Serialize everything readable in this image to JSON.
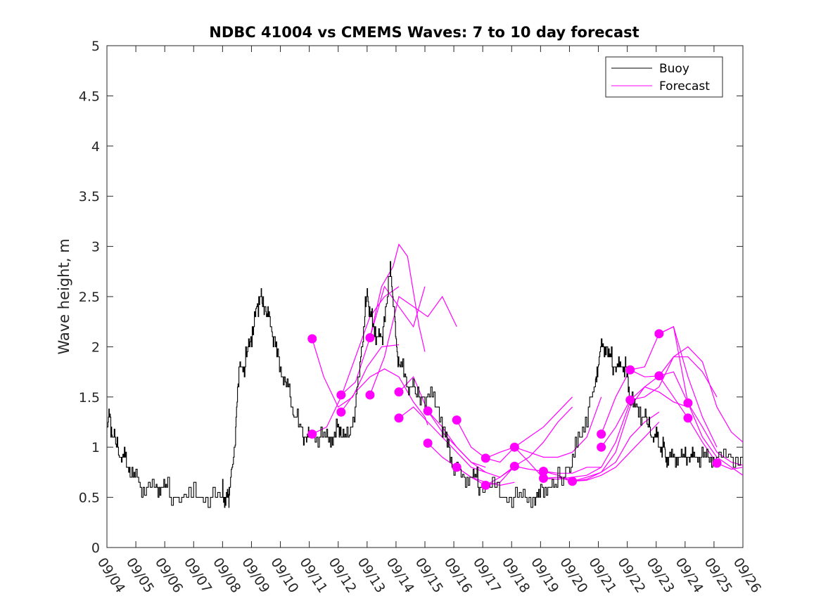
{
  "chart_data": {
    "type": "line",
    "title": "NDBC 41004 vs CMEMS Waves: 7 to 10 day forecast",
    "xlabel": "",
    "ylabel": "Wave height, m",
    "ylim": [
      0,
      5
    ],
    "xlim": [
      0,
      22
    ],
    "yticks": [
      0,
      0.5,
      1,
      1.5,
      2,
      2.5,
      3,
      3.5,
      4,
      4.5,
      5
    ],
    "ytick_labels": [
      "0",
      "0.5",
      "1",
      "1.5",
      "2",
      "2.5",
      "3",
      "3.5",
      "4",
      "4.5",
      "5"
    ],
    "xtick_labels": [
      "09/04",
      "09/05",
      "09/06",
      "09/07",
      "09/08",
      "09/09",
      "09/10",
      "09/11",
      "09/12",
      "09/13",
      "09/14",
      "09/15",
      "09/16",
      "09/17",
      "09/18",
      "09/19",
      "09/20",
      "09/21",
      "09/22",
      "09/23",
      "09/24",
      "09/25",
      "09/26"
    ],
    "legend": {
      "placement": "top-right",
      "entries": [
        {
          "label": "Buoy",
          "color": "#000000"
        },
        {
          "label": "Forecast",
          "color": "#ff00ff"
        }
      ]
    },
    "colors": {
      "buoy": "#000000",
      "forecast": "#ff00ff",
      "axis": "#262626"
    },
    "buoy_series": {
      "name": "Buoy",
      "x": [
        0,
        0.1,
        0.2,
        0.35,
        0.5,
        0.65,
        0.8,
        1.0,
        1.3,
        1.7,
        1.9,
        2.1,
        2.5,
        3.0,
        3.5,
        4.0,
        4.1,
        4.2,
        4.25,
        4.4,
        4.5,
        4.6,
        4.75,
        4.9,
        5.05,
        5.2,
        5.3,
        5.4,
        5.5,
        5.6,
        5.75,
        5.9,
        6.1,
        6.3,
        6.5,
        6.75,
        6.9,
        7.0,
        7.3,
        7.6,
        7.8,
        8.0,
        8.1,
        8.3,
        8.55,
        8.75,
        8.9,
        9.0,
        9.1,
        9.2,
        9.35,
        9.5,
        9.6,
        9.8,
        9.9,
        10.0,
        10.1,
        10.3,
        10.5,
        10.75,
        11.0,
        11.3,
        11.6,
        11.8,
        12.0,
        12.3,
        12.6,
        12.8,
        13.0,
        13.5,
        14.0,
        14.4,
        14.8,
        15.0,
        15.3,
        15.6,
        16.0,
        16.3,
        16.6,
        16.9,
        17.0,
        17.15,
        17.3,
        17.45,
        17.6,
        17.75,
        17.9,
        18.0,
        18.1,
        18.3,
        18.55,
        18.75,
        18.9,
        19.05,
        19.2,
        19.3,
        19.4,
        19.6,
        19.8,
        20.0,
        20.15,
        20.3,
        20.5,
        20.75,
        21.0,
        21.5,
        22.0
      ],
      "values": [
        1.2,
        1.3,
        1.1,
        1.0,
        0.9,
        0.85,
        0.75,
        0.7,
        0.6,
        0.6,
        0.6,
        0.55,
        0.5,
        0.55,
        0.5,
        0.55,
        0.5,
        0.5,
        0.6,
        0.9,
        1.5,
        1.8,
        1.8,
        2.0,
        2.2,
        2.4,
        2.5,
        2.4,
        2.35,
        2.3,
        2.1,
        1.9,
        1.7,
        1.55,
        1.3,
        1.15,
        1.1,
        1.05,
        1.1,
        1.05,
        1.1,
        1.2,
        1.15,
        1.1,
        1.3,
        1.8,
        2.3,
        2.5,
        2.35,
        2.2,
        2.1,
        2.05,
        2.3,
        2.75,
        2.5,
        2.0,
        1.85,
        1.7,
        1.6,
        1.5,
        1.45,
        1.5,
        1.2,
        1.0,
        0.8,
        0.7,
        0.7,
        0.65,
        0.6,
        0.55,
        0.5,
        0.45,
        0.5,
        0.55,
        0.6,
        0.65,
        0.8,
        1.05,
        1.3,
        1.6,
        1.9,
        2.0,
        1.95,
        1.85,
        1.8,
        1.75,
        1.8,
        1.7,
        1.5,
        1.4,
        1.3,
        1.2,
        1.1,
        1.05,
        1.0,
        0.95,
        0.95,
        0.9,
        0.9,
        0.85,
        0.9,
        0.85,
        0.85,
        0.85,
        0.85,
        0.85,
        0.85
      ]
    },
    "forecast_markers": [
      {
        "x": 7.1,
        "y": 2.08
      },
      {
        "x": 7.1,
        "y": 1.13
      },
      {
        "x": 8.1,
        "y": 1.52
      },
      {
        "x": 8.1,
        "y": 1.35
      },
      {
        "x": 9.1,
        "y": 2.09
      },
      {
        "x": 9.1,
        "y": 1.52
      },
      {
        "x": 10.1,
        "y": 1.55
      },
      {
        "x": 10.1,
        "y": 1.29
      },
      {
        "x": 11.1,
        "y": 1.36
      },
      {
        "x": 11.1,
        "y": 1.04
      },
      {
        "x": 12.1,
        "y": 1.27
      },
      {
        "x": 12.1,
        "y": 0.8
      },
      {
        "x": 13.1,
        "y": 0.89
      },
      {
        "x": 13.1,
        "y": 0.62
      },
      {
        "x": 14.1,
        "y": 1.0
      },
      {
        "x": 14.1,
        "y": 0.81
      },
      {
        "x": 15.1,
        "y": 0.76
      },
      {
        "x": 15.1,
        "y": 0.69
      },
      {
        "x": 16.1,
        "y": 0.66
      },
      {
        "x": 17.1,
        "y": 1.13
      },
      {
        "x": 17.1,
        "y": 1.0
      },
      {
        "x": 18.1,
        "y": 1.77
      },
      {
        "x": 18.1,
        "y": 1.47
      },
      {
        "x": 19.1,
        "y": 2.13
      },
      {
        "x": 19.1,
        "y": 1.71
      },
      {
        "x": 20.1,
        "y": 1.44
      },
      {
        "x": 20.1,
        "y": 1.29
      },
      {
        "x": 21.1,
        "y": 0.84
      }
    ],
    "forecast_lines": [
      {
        "x": [
          7.1,
          7.5,
          8.0,
          8.5,
          9.0,
          9.5,
          10.1
        ],
        "values": [
          2.08,
          1.7,
          1.4,
          1.5,
          1.8,
          2.0,
          2.02
        ]
      },
      {
        "x": [
          7.1,
          7.6,
          8.1,
          8.6,
          9.1,
          9.6,
          10.1
        ],
        "values": [
          1.13,
          1.2,
          1.5,
          1.9,
          2.3,
          2.5,
          2.6
        ]
      },
      {
        "x": [
          8.1,
          8.6,
          9.1,
          9.6,
          10.1,
          10.6,
          11.0
        ],
        "values": [
          1.52,
          1.65,
          2.09,
          2.6,
          2.4,
          2.2,
          2.6
        ]
      },
      {
        "x": [
          8.1,
          8.6,
          9.1,
          9.6,
          10.1,
          10.6,
          11.0,
          11.1
        ],
        "values": [
          1.35,
          1.55,
          1.7,
          1.78,
          1.7,
          1.45,
          1.3,
          1.22
        ]
      },
      {
        "x": [
          9.1,
          9.5,
          9.9,
          10.1,
          10.4,
          10.8,
          11.0
        ],
        "values": [
          2.09,
          2.6,
          2.8,
          3.02,
          2.9,
          2.2,
          1.95
        ]
      },
      {
        "x": [
          9.1,
          9.6,
          10.1,
          10.6,
          11.1,
          11.6,
          12.1
        ],
        "values": [
          1.52,
          1.9,
          2.5,
          2.4,
          2.3,
          2.5,
          2.2
        ]
      },
      {
        "x": [
          10.1,
          10.6,
          11.1,
          11.6,
          12.1,
          12.6,
          13.1
        ],
        "values": [
          1.55,
          1.7,
          1.36,
          1.15,
          1.0,
          0.85,
          0.8
        ]
      },
      {
        "x": [
          10.1,
          10.6,
          11.1,
          11.6,
          12.1,
          12.6,
          13.1
        ],
        "values": [
          1.29,
          1.4,
          1.25,
          1.1,
          0.95,
          0.8,
          0.75
        ]
      },
      {
        "x": [
          11.1,
          11.6,
          12.1,
          12.6,
          13.1,
          13.6,
          14.1
        ],
        "values": [
          1.36,
          1.2,
          1.0,
          0.85,
          0.75,
          0.7,
          0.8
        ]
      },
      {
        "x": [
          11.1,
          11.6,
          12.1,
          12.6,
          13.1,
          13.6,
          14.1
        ],
        "values": [
          1.04,
          0.9,
          0.8,
          0.7,
          0.65,
          0.62,
          0.65
        ]
      },
      {
        "x": [
          12.1,
          12.6,
          13.1,
          13.6,
          14.1,
          14.6,
          15.1,
          15.6,
          16.1
        ],
        "values": [
          1.27,
          1.0,
          0.89,
          0.85,
          1.0,
          1.1,
          1.2,
          1.35,
          1.5
        ]
      },
      {
        "x": [
          12.1,
          12.6,
          13.1,
          13.6,
          14.1,
          14.6,
          15.1,
          15.6,
          16.1
        ],
        "values": [
          0.8,
          0.7,
          0.62,
          0.65,
          0.81,
          0.9,
          1.05,
          1.25,
          1.4
        ]
      },
      {
        "x": [
          13.1,
          13.6,
          14.1,
          14.6,
          15.1,
          15.6,
          16.1,
          16.6,
          17.1
        ],
        "values": [
          0.89,
          0.95,
          1.0,
          0.95,
          0.9,
          0.9,
          0.95,
          1.1,
          1.5
        ]
      },
      {
        "x": [
          13.1,
          13.6,
          14.1,
          14.6,
          15.1,
          15.6,
          16.1,
          16.6,
          17.1
        ],
        "values": [
          0.62,
          0.7,
          0.81,
          0.78,
          0.76,
          0.74,
          0.74,
          0.8,
          0.8
        ]
      },
      {
        "x": [
          14.1,
          14.6,
          15.1,
          15.6,
          16.1,
          16.6,
          17.1,
          17.6,
          18.1
        ],
        "values": [
          1.0,
          0.85,
          0.69,
          0.68,
          0.7,
          0.72,
          0.8,
          1.05,
          1.45
        ]
      },
      {
        "x": [
          15.1,
          15.6,
          16.1,
          16.6,
          17.1,
          17.6,
          18.1,
          18.6,
          19.1
        ],
        "values": [
          0.76,
          0.72,
          0.66,
          0.68,
          0.75,
          0.85,
          1.1,
          1.25,
          1.35
        ]
      },
      {
        "x": [
          15.1,
          15.6,
          16.1,
          16.6,
          17.1,
          17.6,
          18.1,
          18.6,
          19.1
        ],
        "values": [
          0.69,
          0.7,
          0.66,
          0.67,
          0.72,
          0.8,
          0.95,
          1.1,
          1.25
        ]
      },
      {
        "x": [
          16.1,
          16.6,
          17.1,
          17.6,
          18.1,
          18.6,
          19.1,
          19.6,
          20.1
        ],
        "values": [
          0.66,
          0.7,
          0.75,
          0.95,
          1.4,
          1.6,
          1.55,
          1.45,
          1.4
        ]
      },
      {
        "x": [
          17.1,
          17.6,
          18.1,
          18.6,
          19.1,
          19.6,
          20.1,
          20.6,
          21.1
        ],
        "values": [
          1.13,
          1.5,
          1.77,
          1.8,
          2.13,
          2.2,
          1.7,
          1.3,
          1.0
        ]
      },
      {
        "x": [
          17.1,
          17.6,
          18.1,
          18.6,
          19.1,
          19.6,
          20.1,
          20.6,
          21.1
        ],
        "values": [
          1.0,
          1.2,
          1.47,
          1.6,
          1.71,
          1.9,
          1.9,
          1.75,
          1.5
        ]
      },
      {
        "x": [
          18.1,
          18.6,
          19.1,
          19.6,
          20.1,
          20.6,
          21.1,
          21.6,
          22.0
        ],
        "values": [
          1.77,
          1.7,
          1.71,
          1.75,
          1.44,
          1.2,
          0.95,
          0.85,
          0.82
        ]
      },
      {
        "x": [
          18.1,
          18.6,
          19.1,
          19.6,
          20.1,
          20.6,
          21.1,
          21.6,
          22.0
        ],
        "values": [
          1.47,
          1.5,
          1.6,
          1.9,
          2.0,
          1.85,
          1.4,
          1.15,
          1.05
        ]
      },
      {
        "x": [
          19.1,
          19.6,
          20.1,
          20.6,
          21.1,
          21.6,
          22.0
        ],
        "values": [
          2.13,
          2.2,
          1.44,
          1.1,
          0.9,
          0.8,
          0.72
        ]
      },
      {
        "x": [
          19.1,
          19.6,
          20.1,
          20.6,
          21.1,
          21.6,
          22.0
        ],
        "values": [
          1.71,
          1.5,
          1.29,
          1.05,
          0.84,
          0.78,
          0.8
        ]
      }
    ]
  }
}
